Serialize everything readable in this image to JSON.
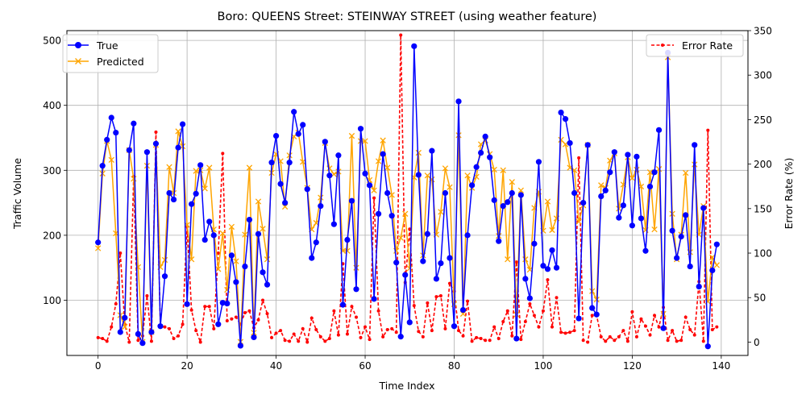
{
  "chart_data": {
    "type": "line",
    "title": "Boro: QUEENS Street: STEINWAY STREET (using weather feature)",
    "xlabel": "Time Index",
    "ylabel": "Traffic Volume",
    "y2label": "Error Rate (%)",
    "xlim": [
      -7,
      146
    ],
    "ylim": [
      15,
      515
    ],
    "y2lim": [
      -15,
      350
    ],
    "xticks": [
      0,
      20,
      40,
      60,
      80,
      100,
      120,
      140
    ],
    "yticks": [
      100,
      200,
      300,
      400,
      500
    ],
    "y2ticks": [
      0,
      50,
      100,
      150,
      200,
      250,
      300,
      350
    ],
    "grid": true,
    "legend_left_position": "upper-left",
    "legend_right_position": "upper-right",
    "colors": {
      "true": "#0000ff",
      "predicted": "#ffa500",
      "error": "#ff0000"
    },
    "series": [
      {
        "name": "True",
        "values": [
          189,
          307,
          347,
          381,
          358,
          51,
          73,
          331,
          372,
          48,
          34,
          328,
          51,
          341,
          60,
          137,
          265,
          255,
          335,
          371,
          94,
          248,
          264,
          308,
          193,
          221,
          200,
          63,
          96,
          95,
          169,
          128,
          30,
          152,
          224,
          43,
          202,
          143,
          124,
          312,
          353,
          279,
          250,
          312,
          390,
          356,
          370,
          271,
          165,
          189,
          245,
          344,
          292,
          217,
          323,
          93,
          193,
          253,
          117,
          364,
          295,
          277,
          102,
          233,
          325,
          265,
          230,
          158,
          44,
          139,
          66,
          491,
          293,
          160,
          202,
          330,
          133,
          157,
          265,
          165,
          60,
          406,
          85,
          200,
          277,
          305,
          327,
          352,
          320,
          254,
          191,
          245,
          251,
          265,
          41,
          262,
          133,
          103,
          187,
          313,
          153,
          148,
          177,
          150,
          389,
          379,
          342,
          265,
          72,
          250,
          339,
          88,
          78,
          260,
          269,
          297,
          328,
          227,
          246,
          324,
          215,
          321,
          226,
          176,
          275,
          297,
          362,
          57,
          481,
          207,
          165,
          198,
          231,
          152,
          339,
          121,
          242,
          29,
          146,
          186
        ]
      },
      {
        "name": "Predicted",
        "values": [
          180,
          295,
          345,
          316,
          203,
          77,
          59,
          331,
          287,
          151,
          36,
          307,
          51,
          339,
          151,
          162,
          305,
          265,
          360,
          337,
          216,
          163,
          299,
          300,
          272,
          304,
          209,
          148,
          203,
          116,
          213,
          160,
          36,
          201,
          304,
          50,
          252,
          210,
          163,
          296,
          325,
          314,
          244,
          323,
          352,
          358,
          313,
          273,
          209,
          219,
          258,
          342,
          303,
          294,
          298,
          176,
          176,
          353,
          150,
          345,
          345,
          285,
          269,
          314,
          346,
          304,
          262,
          176,
          196,
          233,
          149,
          289,
          327,
          169,
          292,
          286,
          201,
          236,
          303,
          274,
          94,
          354,
          79,
          292,
          273,
          290,
          340,
          346,
          325,
          301,
          199,
          300,
          163,
          282,
          78,
          269,
          163,
          147,
          242,
          267,
          207,
          252,
          208,
          226,
          347,
          340,
          304,
          300,
          221,
          246,
          339,
          114,
          101,
          277,
          273,
          315,
          326,
          241,
          278,
          320,
          288,
          301,
          275,
          208,
          297,
          209,
          302,
          79,
          474,
          233,
          163,
          201,
          296,
          174,
          309,
          201,
          245,
          98,
          166,
          154
        ]
      },
      {
        "name": "Error Rate",
        "values": [
          5,
          4,
          1,
          17,
          43,
          100,
          20,
          0,
          186,
          2,
          7,
          52,
          1,
          236,
          17,
          17,
          15,
          4,
          7,
          20,
          130,
          36,
          13,
          0,
          40,
          40,
          15,
          100,
          212,
          24,
          26,
          28,
          20,
          33,
          35,
          16,
          25,
          47,
          32,
          5,
          10,
          13,
          2,
          1,
          9,
          1,
          15,
          0,
          27,
          14,
          6,
          1,
          4,
          35,
          8,
          88,
          9,
          40,
          28,
          5,
          17,
          3,
          162,
          35,
          6,
          14,
          15,
          11,
          345,
          67,
          127,
          41,
          12,
          6,
          44,
          13,
          51,
          52,
          15,
          66,
          57,
          13,
          7,
          46,
          1,
          5,
          4,
          2,
          2,
          17,
          4,
          23,
          35,
          7,
          90,
          3,
          23,
          43,
          30,
          17,
          35,
          70,
          17,
          50,
          11,
          10,
          11,
          13,
          207,
          2,
          0,
          30,
          30,
          6,
          1,
          6,
          2,
          6,
          13,
          1,
          34,
          6,
          26,
          18,
          8,
          30,
          17,
          39,
          2,
          13,
          1,
          2,
          28,
          14,
          8,
          68,
          1,
          238,
          14,
          17
        ]
      }
    ]
  }
}
